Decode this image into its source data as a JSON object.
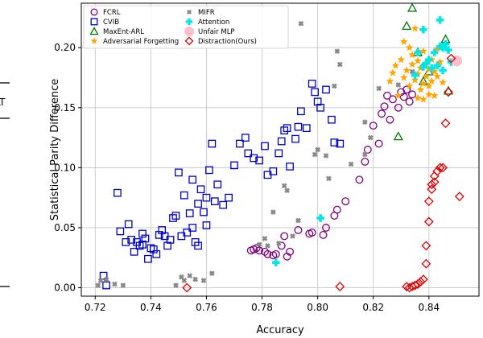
{
  "chart_data": {
    "type": "scatter",
    "xlabel": "Accuracy",
    "ylabel": "Statistical Parity Difference",
    "xlim": [
      0.715,
      0.858
    ],
    "ylim": [
      -0.007,
      0.237
    ],
    "x_ticks": [
      "0.72",
      "0.74",
      "0.76",
      "0.78",
      "0.80",
      "0.82",
      "0.84"
    ],
    "y_ticks": [
      "0.00",
      "0.05",
      "0.10",
      "0.15",
      "0.20"
    ],
    "x_tick_values": [
      0.72,
      0.74,
      0.76,
      0.78,
      0.8,
      0.82,
      0.84
    ],
    "y_tick_values": [
      0.0,
      0.05,
      0.1,
      0.15,
      0.2
    ],
    "grid": true,
    "legend_position": "top-left",
    "edge_fragment_text": "LT",
    "series": [
      {
        "name": "FCRL",
        "marker": "circle",
        "color": "#800080",
        "points": [
          [
            0.776,
            0.031
          ],
          [
            0.777,
            0.032
          ],
          [
            0.778,
            0.033
          ],
          [
            0.779,
            0.031
          ],
          [
            0.781,
            0.03
          ],
          [
            0.782,
            0.028
          ],
          [
            0.784,
            0.027
          ],
          [
            0.785,
            0.028
          ],
          [
            0.787,
            0.035
          ],
          [
            0.788,
            0.043
          ],
          [
            0.789,
            0.026
          ],
          [
            0.79,
            0.03
          ],
          [
            0.793,
            0.048
          ],
          [
            0.797,
            0.045
          ],
          [
            0.798,
            0.046
          ],
          [
            0.802,
            0.044
          ],
          [
            0.803,
            0.05
          ],
          [
            0.806,
            0.06
          ],
          [
            0.807,
            0.065
          ],
          [
            0.81,
            0.072
          ],
          [
            0.815,
            0.09
          ],
          [
            0.817,
            0.105
          ],
          [
            0.818,
            0.115
          ],
          [
            0.82,
            0.135
          ],
          [
            0.822,
            0.12
          ],
          [
            0.823,
            0.145
          ],
          [
            0.824,
            0.151
          ],
          [
            0.825,
            0.16
          ],
          [
            0.826,
            0.14
          ],
          [
            0.827,
            0.157
          ],
          [
            0.829,
            0.15
          ],
          [
            0.83,
            0.163
          ],
          [
            0.831,
            0.159
          ],
          [
            0.832,
            0.165
          ],
          [
            0.833,
            0.155
          ],
          [
            0.834,
            0.161
          ]
        ]
      },
      {
        "name": "CVIB",
        "marker": "square",
        "color": "#0000cc",
        "points": [
          [
            0.723,
            0.01
          ],
          [
            0.724,
            0.002
          ],
          [
            0.728,
            0.079
          ],
          [
            0.729,
            0.047
          ],
          [
            0.731,
            0.038
          ],
          [
            0.732,
            0.053
          ],
          [
            0.733,
            0.04
          ],
          [
            0.734,
            0.03
          ],
          [
            0.735,
            0.038
          ],
          [
            0.736,
            0.035
          ],
          [
            0.737,
            0.036
          ],
          [
            0.737,
            0.045
          ],
          [
            0.738,
            0.041
          ],
          [
            0.739,
            0.024
          ],
          [
            0.74,
            0.033
          ],
          [
            0.741,
            0.032
          ],
          [
            0.742,
            0.028
          ],
          [
            0.743,
            0.044
          ],
          [
            0.744,
            0.048
          ],
          [
            0.745,
            0.043
          ],
          [
            0.746,
            0.035
          ],
          [
            0.747,
            0.04
          ],
          [
            0.748,
            0.058
          ],
          [
            0.749,
            0.06
          ],
          [
            0.75,
            0.096
          ],
          [
            0.751,
            0.043
          ],
          [
            0.752,
            0.077
          ],
          [
            0.753,
            0.046
          ],
          [
            0.754,
            0.062
          ],
          [
            0.755,
            0.09
          ],
          [
            0.756,
            0.038
          ],
          [
            0.757,
            0.07
          ],
          [
            0.758,
            0.082
          ],
          [
            0.759,
            0.063
          ],
          [
            0.76,
            0.075
          ],
          [
            0.761,
            0.098
          ],
          [
            0.762,
            0.12
          ],
          [
            0.763,
            0.072
          ],
          [
            0.764,
            0.086
          ],
          [
            0.766,
            0.069
          ],
          [
            0.768,
            0.075
          ],
          [
            0.77,
            0.102
          ],
          [
            0.772,
            0.12
          ],
          [
            0.774,
            0.125
          ],
          [
            0.775,
            0.112
          ],
          [
            0.777,
            0.108
          ],
          [
            0.779,
            0.106
          ],
          [
            0.781,
            0.118
          ],
          [
            0.782,
            0.094
          ],
          [
            0.784,
            0.097
          ],
          [
            0.786,
            0.112
          ],
          [
            0.787,
            0.122
          ],
          [
            0.788,
            0.131
          ],
          [
            0.789,
            0.133
          ],
          [
            0.79,
            0.101
          ],
          [
            0.792,
            0.124
          ],
          [
            0.793,
            0.134
          ],
          [
            0.794,
            0.147
          ],
          [
            0.796,
            0.133
          ],
          [
            0.798,
            0.17
          ],
          [
            0.799,
            0.163
          ],
          [
            0.8,
            0.155
          ],
          [
            0.801,
            0.15
          ],
          [
            0.803,
            0.165
          ],
          [
            0.805,
            0.14
          ],
          [
            0.806,
            0.121
          ],
          [
            0.808,
            0.12
          ],
          [
            0.755,
            0.05
          ],
          [
            0.757,
            0.035
          ],
          [
            0.76,
            0.052
          ]
        ]
      },
      {
        "name": "MaxEnt-ARL",
        "marker": "triangle",
        "color": "#007700",
        "points": [
          [
            0.829,
            0.126
          ],
          [
            0.832,
            0.218
          ],
          [
            0.834,
            0.233
          ],
          [
            0.836,
            0.196
          ],
          [
            0.838,
            0.172
          ],
          [
            0.84,
            0.18
          ],
          [
            0.846,
            0.207
          ],
          [
            0.847,
            0.164
          ]
        ]
      },
      {
        "name": "Adversarial Forgetting",
        "marker": "star",
        "color": "#ffa500",
        "points": [
          [
            0.826,
            0.172
          ],
          [
            0.827,
            0.179
          ],
          [
            0.828,
            0.185
          ],
          [
            0.829,
            0.16
          ],
          [
            0.83,
            0.19
          ],
          [
            0.831,
            0.175
          ],
          [
            0.832,
            0.181
          ],
          [
            0.833,
            0.168
          ],
          [
            0.834,
            0.194
          ],
          [
            0.834,
            0.186
          ],
          [
            0.835,
            0.173
          ],
          [
            0.836,
            0.178
          ],
          [
            0.836,
            0.189
          ],
          [
            0.837,
            0.183
          ],
          [
            0.837,
            0.165
          ],
          [
            0.838,
            0.197
          ],
          [
            0.838,
            0.17
          ],
          [
            0.839,
            0.186
          ],
          [
            0.839,
            0.176
          ],
          [
            0.84,
            0.182
          ],
          [
            0.84,
            0.168
          ],
          [
            0.841,
            0.19
          ],
          [
            0.841,
            0.172
          ],
          [
            0.842,
            0.18
          ],
          [
            0.842,
            0.16
          ],
          [
            0.843,
            0.176
          ],
          [
            0.844,
            0.188
          ],
          [
            0.845,
            0.171
          ],
          [
            0.835,
            0.216
          ],
          [
            0.831,
            0.205
          ],
          [
            0.833,
            0.2
          ],
          [
            0.836,
            0.158
          ],
          [
            0.843,
            0.199
          ],
          [
            0.838,
            0.157
          ],
          [
            0.84,
            0.161
          ]
        ]
      },
      {
        "name": "MIFR",
        "marker": "x",
        "color": "#888888",
        "points": [
          [
            0.721,
            0.002
          ],
          [
            0.722,
            0.006
          ],
          [
            0.724,
            0.007
          ],
          [
            0.727,
            0.003
          ],
          [
            0.73,
            0.002
          ],
          [
            0.749,
            0.002
          ],
          [
            0.751,
            0.009
          ],
          [
            0.752,
            0.006
          ],
          [
            0.754,
            0.01
          ],
          [
            0.756,
            0.007
          ],
          [
            0.759,
            0.006
          ],
          [
            0.762,
            0.012
          ],
          [
            0.779,
            0.036
          ],
          [
            0.781,
            0.041
          ],
          [
            0.782,
            0.035
          ],
          [
            0.784,
            0.063
          ],
          [
            0.786,
            0.037
          ],
          [
            0.788,
            0.085
          ],
          [
            0.789,
            0.081
          ],
          [
            0.791,
            0.043
          ],
          [
            0.793,
            0.056
          ],
          [
            0.794,
            0.22
          ],
          [
            0.799,
            0.111
          ],
          [
            0.8,
            0.115
          ],
          [
            0.803,
            0.11
          ],
          [
            0.804,
            0.091
          ],
          [
            0.806,
            0.168
          ],
          [
            0.807,
            0.197
          ],
          [
            0.808,
            0.186
          ],
          [
            0.812,
            0.103
          ],
          [
            0.817,
            0.138
          ],
          [
            0.819,
            0.125
          ],
          [
            0.822,
            0.166
          ],
          [
            0.829,
            0.169
          ],
          [
            0.834,
            0.18
          ],
          [
            0.838,
            0.185
          ],
          [
            0.817,
            0.111
          ]
        ]
      },
      {
        "name": "Attention",
        "marker": "plus",
        "color": "#00e5e5",
        "points": [
          [
            0.785,
            0.021
          ],
          [
            0.801,
            0.058
          ],
          [
            0.835,
            0.177
          ],
          [
            0.836,
            0.196
          ],
          [
            0.838,
            0.184
          ],
          [
            0.839,
            0.187
          ],
          [
            0.84,
            0.19
          ],
          [
            0.841,
            0.183
          ],
          [
            0.842,
            0.196
          ],
          [
            0.843,
            0.185
          ],
          [
            0.844,
            0.223
          ],
          [
            0.844,
            0.201
          ],
          [
            0.845,
            0.2
          ],
          [
            0.846,
            0.203
          ],
          [
            0.847,
            0.198
          ],
          [
            0.848,
            0.188
          ],
          [
            0.838,
            0.215
          ],
          [
            0.845,
            0.181
          ]
        ]
      },
      {
        "name": "Unfair MLP",
        "marker": "bigcircle",
        "color": "#ffc0cb",
        "points": [
          [
            0.85,
            0.189
          ]
        ]
      },
      {
        "name": "Distraction(Ours)",
        "marker": "diamond",
        "color": "#dd0000",
        "points": [
          [
            0.753,
            0.0
          ],
          [
            0.808,
            0.001
          ],
          [
            0.832,
            0.001
          ],
          [
            0.833,
            0.0
          ],
          [
            0.834,
            0.001
          ],
          [
            0.835,
            0.002
          ],
          [
            0.836,
            0.003
          ],
          [
            0.837,
            0.005
          ],
          [
            0.838,
            0.007
          ],
          [
            0.839,
            0.02
          ],
          [
            0.839,
            0.035
          ],
          [
            0.84,
            0.055
          ],
          [
            0.84,
            0.072
          ],
          [
            0.841,
            0.082
          ],
          [
            0.841,
            0.086
          ],
          [
            0.842,
            0.088
          ],
          [
            0.842,
            0.093
          ],
          [
            0.843,
            0.097
          ],
          [
            0.844,
            0.1
          ],
          [
            0.845,
            0.1
          ],
          [
            0.846,
            0.137
          ],
          [
            0.847,
            0.163
          ],
          [
            0.848,
            0.191
          ],
          [
            0.851,
            0.076
          ]
        ]
      }
    ]
  }
}
